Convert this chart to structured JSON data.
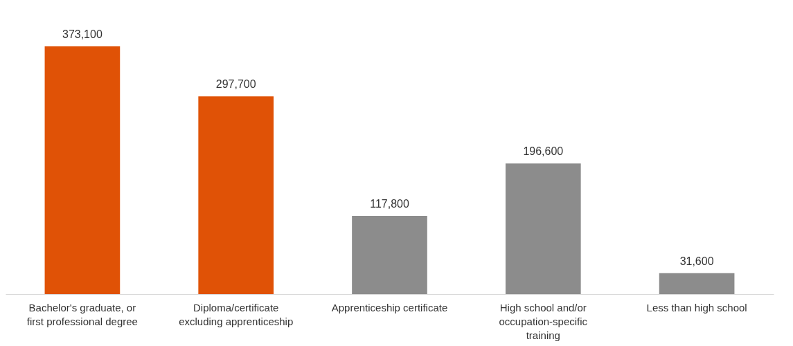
{
  "chart_data": {
    "type": "bar",
    "categories": [
      "Bachelor's graduate, or first professional degree",
      "Diploma/certificate excluding apprenticeship",
      "Apprenticeship certificate",
      "High school and/or occupation-specific training",
      "Less than high school"
    ],
    "values": [
      373100,
      297700,
      117800,
      196600,
      31600
    ],
    "value_labels": [
      "373,100",
      "297,700",
      "117,800",
      "196,600",
      "31,600"
    ],
    "colors": [
      "#e05206",
      "#e05206",
      "#8c8c8c",
      "#8c8c8c",
      "#8c8c8c"
    ]
  }
}
